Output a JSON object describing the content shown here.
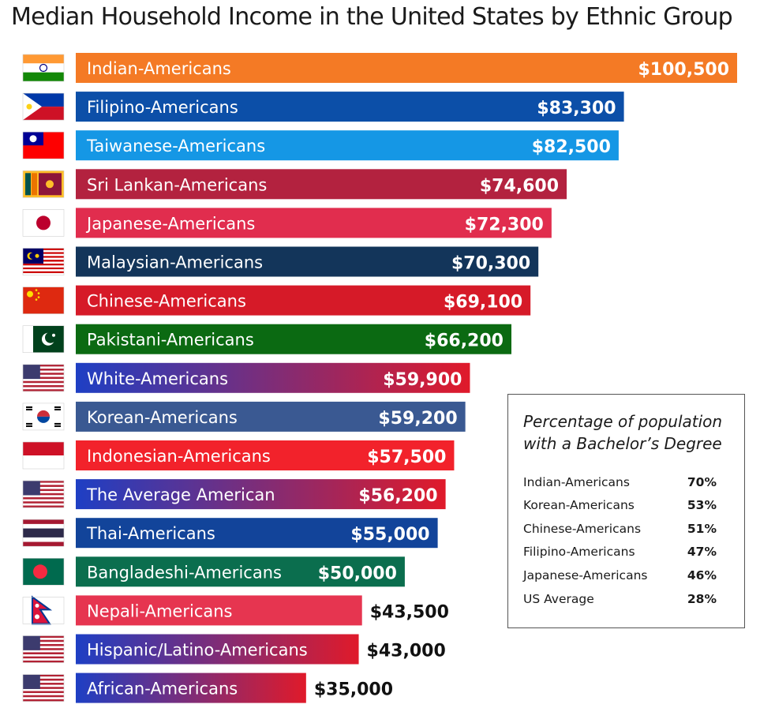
{
  "title": "Median Household Income in the United States  by Ethnic Group",
  "chart_data": {
    "type": "bar",
    "orientation": "horizontal",
    "title": "Median Household Income in the United States  by Ethnic Group",
    "categories": [
      "Indian-Americans",
      "Filipino-Americans",
      "Taiwanese-Americans",
      "Sri Lankan-Americans",
      "Japanese-Americans",
      "Malaysian-Americans",
      "Chinese-Americans",
      "Pakistani-Americans",
      "White-Americans",
      "Korean-Americans",
      "Indonesian-Americans",
      "The Average American",
      "Thai-Americans",
      "Bangladeshi-Americans",
      "Nepali-Americans",
      "Hispanic/Latino-Americans",
      "African-Americans"
    ],
    "values": [
      100500,
      83300,
      82500,
      74600,
      72300,
      70300,
      69100,
      66200,
      59900,
      59200,
      57500,
      56200,
      55000,
      50000,
      43500,
      43000,
      35000
    ],
    "value_labels": [
      "$100,500",
      "$83,300",
      "$82,500",
      "$74,600",
      "$72,300",
      "$70,300",
      "$69,100",
      "$66,200",
      "$59,900",
      "$59,200",
      "$57,500",
      "$56,200",
      "$55,000",
      "$50,000",
      "$43,500",
      "$43,000",
      "$35,000"
    ],
    "bar_colors": [
      [
        "#f47a25",
        "#f47a25"
      ],
      [
        "#0c4fa8",
        "#0c4fa8"
      ],
      [
        "#1597e5",
        "#1597e5"
      ],
      [
        "#b3223f",
        "#b3223f"
      ],
      [
        "#e12d4e",
        "#e12d4e"
      ],
      [
        "#13355a",
        "#13355a"
      ],
      [
        "#d61a28",
        "#d61a28"
      ],
      [
        "#0b6a12",
        "#0b6a12"
      ],
      [
        "#1e3fc4",
        "#e01a2a"
      ],
      [
        "#3a5992",
        "#3a5992"
      ],
      [
        "#f2222b",
        "#f2222b"
      ],
      [
        "#1e3fc4",
        "#e01a2a"
      ],
      [
        "#12449a",
        "#12449a"
      ],
      [
        "#0b6e4e",
        "#0b6e4e"
      ],
      [
        "#e63550",
        "#e63550"
      ],
      [
        "#1e3fc4",
        "#e01a2a"
      ],
      [
        "#1e3fc4",
        "#e01a2a"
      ]
    ],
    "flags": [
      "india-flag-icon",
      "philippines-flag-icon",
      "taiwan-flag-icon",
      "sri-lanka-flag-icon",
      "japan-flag-icon",
      "malaysia-flag-icon",
      "china-flag-icon",
      "pakistan-flag-icon",
      "usa-flag-icon",
      "south-korea-flag-icon",
      "indonesia-flag-icon",
      "usa-flag-icon",
      "thailand-flag-icon",
      "bangladesh-flag-icon",
      "nepal-flag-icon",
      "usa-flag-icon",
      "usa-flag-icon"
    ],
    "xlim": [
      0,
      100500
    ],
    "grid": false,
    "legend": "none"
  },
  "bachelors": {
    "title_line1": "Percentage of population",
    "title_line2": "with a Bachelor’s Degree",
    "rows": [
      {
        "name": "Indian-Americans",
        "value": "70%"
      },
      {
        "name": "Korean-Americans",
        "value": "53%"
      },
      {
        "name": "Chinese-Americans",
        "value": "51%"
      },
      {
        "name": "Filipino-Americans",
        "value": "47%"
      },
      {
        "name": "Japanese-Americans",
        "value": "46%"
      },
      {
        "name": "US Average",
        "value": "28%"
      }
    ]
  }
}
